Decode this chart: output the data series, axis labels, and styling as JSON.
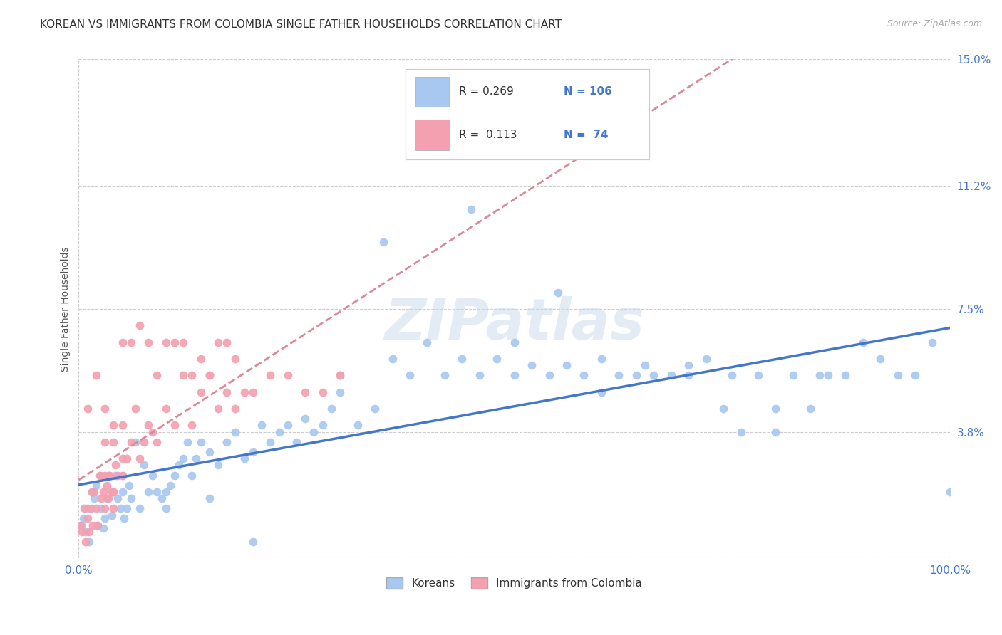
{
  "title": "KOREAN VS IMMIGRANTS FROM COLOMBIA SINGLE FATHER HOUSEHOLDS CORRELATION CHART",
  "source": "Source: ZipAtlas.com",
  "ylabel": "Single Father Households",
  "xlim": [
    0,
    100
  ],
  "ylim": [
    0,
    15.0
  ],
  "yticks": [
    0,
    3.8,
    7.5,
    11.2,
    15.0
  ],
  "xtick_labels": [
    "0.0%",
    "100.0%"
  ],
  "ytick_labels": [
    "",
    "3.8%",
    "7.5%",
    "11.2%",
    "15.0%"
  ],
  "grid_color": "#cccccc",
  "background_color": "#ffffff",
  "korean_color": "#a8c8f0",
  "colombia_color": "#f4a0b0",
  "korean_line_color": "#4477cc",
  "colombia_line_color": "#dd8899",
  "legend_R1": "0.269",
  "legend_N1": "106",
  "legend_R2": "0.113",
  "legend_N2": "74",
  "legend_label1": "Koreans",
  "legend_label2": "Immigrants from Colombia",
  "watermark": "ZIPatlas",
  "title_fontsize": 11,
  "label_fontsize": 10,
  "tick_fontsize": 11,
  "axis_color": "#4477cc",
  "korean_x": [
    0.3,
    0.5,
    0.8,
    1.0,
    1.2,
    1.5,
    1.8,
    2.0,
    2.2,
    2.5,
    2.8,
    3.0,
    3.2,
    3.5,
    3.8,
    4.0,
    4.2,
    4.5,
    4.8,
    5.0,
    5.2,
    5.5,
    5.8,
    6.0,
    6.5,
    7.0,
    7.5,
    8.0,
    8.5,
    9.0,
    9.5,
    10.0,
    10.5,
    11.0,
    11.5,
    12.0,
    12.5,
    13.0,
    13.5,
    14.0,
    15.0,
    16.0,
    17.0,
    18.0,
    19.0,
    20.0,
    21.0,
    22.0,
    23.0,
    24.0,
    25.0,
    26.0,
    27.0,
    28.0,
    29.0,
    30.0,
    32.0,
    34.0,
    36.0,
    38.0,
    40.0,
    42.0,
    44.0,
    46.0,
    48.0,
    50.0,
    52.0,
    54.0,
    56.0,
    58.0,
    60.0,
    62.0,
    64.0,
    66.0,
    68.0,
    70.0,
    72.0,
    74.0,
    76.0,
    78.0,
    80.0,
    82.0,
    84.0,
    86.0,
    88.0,
    90.0,
    92.0,
    94.0,
    96.0,
    98.0,
    100.0,
    35.0,
    45.0,
    55.0,
    65.0,
    75.0,
    50.0,
    60.0,
    70.0,
    80.0,
    85.0,
    30.0,
    20.0,
    15.0,
    10.0,
    5.0
  ],
  "korean_y": [
    1.0,
    1.2,
    0.8,
    1.5,
    0.5,
    2.0,
    1.8,
    2.2,
    1.0,
    1.5,
    0.9,
    1.2,
    1.8,
    2.5,
    1.3,
    2.0,
    2.5,
    1.8,
    1.5,
    2.0,
    1.2,
    1.5,
    2.2,
    1.8,
    3.5,
    1.5,
    2.8,
    2.0,
    2.5,
    2.0,
    1.8,
    2.0,
    2.2,
    2.5,
    2.8,
    3.0,
    3.5,
    2.5,
    3.0,
    3.5,
    3.2,
    2.8,
    3.5,
    3.8,
    3.0,
    3.2,
    4.0,
    3.5,
    3.8,
    4.0,
    3.5,
    4.2,
    3.8,
    4.0,
    4.5,
    5.0,
    4.0,
    4.5,
    6.0,
    5.5,
    6.5,
    5.5,
    6.0,
    5.5,
    6.0,
    6.5,
    5.8,
    5.5,
    5.8,
    5.5,
    6.0,
    5.5,
    5.5,
    5.5,
    5.5,
    5.8,
    6.0,
    4.5,
    3.8,
    5.5,
    4.5,
    5.5,
    4.5,
    5.5,
    5.5,
    6.5,
    6.0,
    5.5,
    5.5,
    6.5,
    2.0,
    9.5,
    10.5,
    8.0,
    5.8,
    5.5,
    5.5,
    5.0,
    5.5,
    3.8,
    5.5,
    5.5,
    0.5,
    1.8,
    1.5,
    2.5
  ],
  "colombia_x": [
    0.2,
    0.4,
    0.6,
    0.8,
    1.0,
    1.2,
    1.4,
    1.6,
    1.8,
    2.0,
    2.2,
    2.4,
    2.6,
    2.8,
    3.0,
    3.2,
    3.4,
    3.6,
    3.8,
    4.0,
    4.2,
    4.5,
    5.0,
    5.5,
    6.0,
    6.5,
    7.0,
    7.5,
    8.0,
    8.5,
    9.0,
    10.0,
    11.0,
    12.0,
    13.0,
    14.0,
    15.0,
    16.0,
    17.0,
    18.0,
    19.0,
    20.0,
    22.0,
    24.0,
    26.0,
    28.0,
    30.0,
    3.5,
    1.5,
    2.5,
    3.0,
    4.0,
    5.0,
    1.0,
    2.0,
    3.0,
    4.0,
    5.0,
    6.0,
    7.0,
    8.0,
    9.0,
    10.0,
    11.0,
    12.0,
    13.0,
    14.0,
    15.0,
    16.0,
    17.0,
    18.0,
    3.0,
    4.0,
    5.0
  ],
  "colombia_y": [
    1.0,
    0.8,
    1.5,
    0.5,
    1.2,
    0.8,
    1.5,
    1.0,
    2.0,
    1.5,
    1.0,
    2.5,
    1.8,
    2.0,
    1.5,
    2.2,
    1.8,
    2.5,
    2.0,
    1.5,
    2.8,
    2.5,
    3.0,
    3.0,
    3.5,
    4.5,
    3.0,
    3.5,
    4.0,
    3.8,
    3.5,
    4.5,
    4.0,
    5.5,
    4.0,
    5.0,
    5.5,
    4.5,
    5.0,
    4.5,
    5.0,
    5.0,
    5.5,
    5.5,
    5.0,
    5.0,
    5.5,
    2.5,
    2.0,
    2.5,
    2.5,
    2.0,
    2.5,
    4.5,
    5.5,
    3.5,
    3.5,
    6.5,
    6.5,
    7.0,
    6.5,
    5.5,
    6.5,
    6.5,
    6.5,
    5.5,
    6.0,
    5.5,
    6.5,
    6.5,
    6.0,
    4.5,
    4.0,
    4.0
  ]
}
